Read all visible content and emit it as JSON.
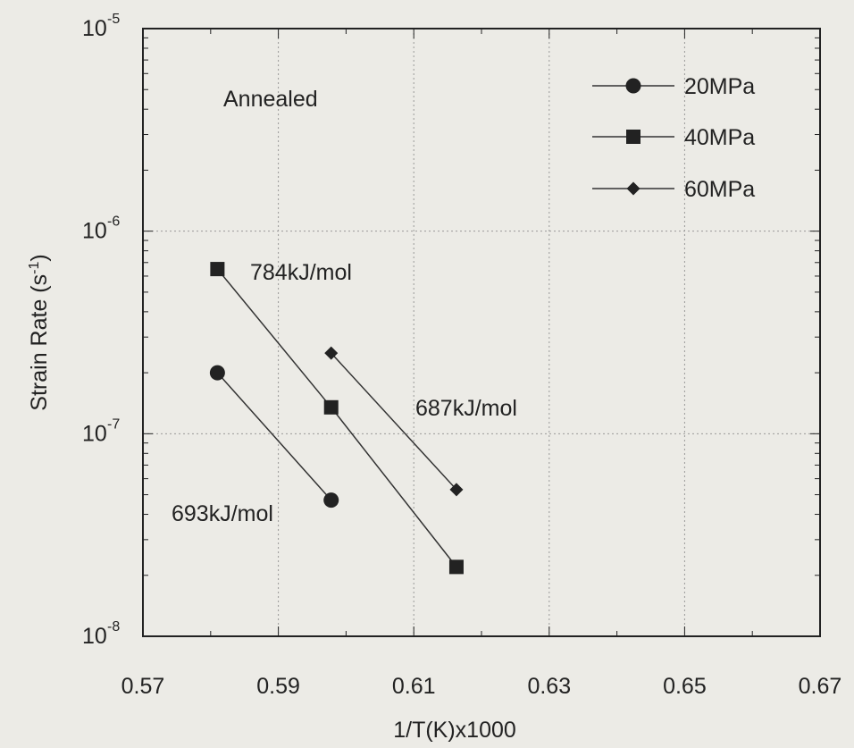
{
  "chart_data": {
    "type": "scatter",
    "xlabel": "1/T(K)x1000",
    "ylabel": "Strain Rate (s",
    "ylabel_sup": "-1",
    "ylabel_end": ")",
    "x_scale": "linear",
    "y_scale": "log",
    "xlim": [
      0.57,
      0.67
    ],
    "ylim": [
      1e-08,
      1e-05
    ],
    "x_ticks": [
      "0.57",
      "0.59",
      "0.61",
      "0.63",
      "0.65",
      "0.67"
    ],
    "y_ticks": [
      {
        "value": 1e-05,
        "base": "10",
        "exp": "-5"
      },
      {
        "value": 1e-06,
        "base": "10",
        "exp": "-6"
      },
      {
        "value": 1e-07,
        "base": "10",
        "exp": "-7"
      },
      {
        "value": 1e-08,
        "base": "10",
        "exp": "-8"
      }
    ],
    "grid": true,
    "legend_position": "top-right",
    "series": [
      {
        "name": "20MPa",
        "marker": "circle",
        "x": [
          0.581,
          0.5978
        ],
        "y": [
          2e-07,
          4.7e-08
        ]
      },
      {
        "name": "40MPa",
        "marker": "square",
        "x": [
          0.581,
          0.5978,
          0.6163
        ],
        "y": [
          6.5e-07,
          1.35e-07,
          2.2e-08
        ]
      },
      {
        "name": "60MPa",
        "marker": "diamond",
        "x": [
          0.5978,
          0.6163
        ],
        "y": [
          2.5e-07,
          5.3e-08
        ]
      }
    ],
    "annotations": [
      "Annealed",
      "784kJ/mol",
      "687kJ/mol",
      "693kJ/mol"
    ]
  }
}
